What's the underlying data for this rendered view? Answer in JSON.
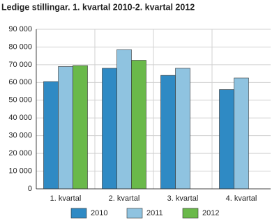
{
  "chart_data": {
    "type": "bar",
    "title": "Ledige stillingar. 1. kvartal 2010-2. kvartal 2012",
    "categories": [
      "1. kvartal",
      "2. kvartal",
      "3. kvartal",
      "4. kvartal"
    ],
    "series": [
      {
        "name": "2010",
        "color": "#2f8ac4",
        "values": [
          60500,
          68000,
          64000,
          56000
        ]
      },
      {
        "name": "2011",
        "color": "#8fc3e0",
        "values": [
          69000,
          78500,
          68000,
          62500
        ]
      },
      {
        "name": "2012",
        "color": "#6ab94a",
        "values": [
          69500,
          72500,
          null,
          null
        ]
      }
    ],
    "ylim": [
      0,
      90000
    ],
    "yticks": [
      0,
      {
        "value": 10000,
        "label": "10 000"
      },
      {
        "value": 20000,
        "label": "20 000"
      },
      {
        "value": 30000,
        "label": "30 000"
      },
      {
        "value": 40000,
        "label": "40 000"
      },
      {
        "value": 50000,
        "label": "50 000"
      },
      {
        "value": 60000,
        "label": "60 000"
      },
      {
        "value": 70000,
        "label": "70 000"
      },
      {
        "value": 80000,
        "label": "80 000"
      },
      {
        "value": 90000,
        "label": "90 000"
      }
    ],
    "grid": true
  }
}
